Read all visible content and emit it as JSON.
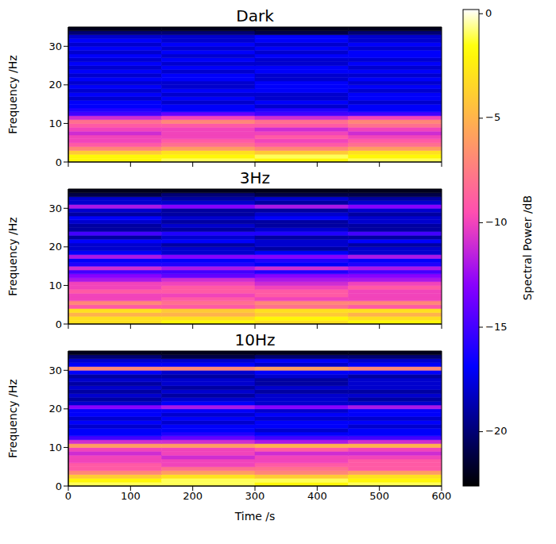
{
  "chart_data": [
    {
      "type": "heatmap",
      "title": "Dark",
      "ylabel": "Frequency /Hz",
      "xlim": [
        0,
        600
      ],
      "xticks": [
        0,
        100,
        200,
        300,
        400,
        500,
        600
      ],
      "ylim": [
        0,
        35
      ],
      "yticks": [
        0,
        10,
        20,
        30
      ],
      "tick_labels": "y",
      "time_bins": [
        0,
        150,
        300,
        450,
        600
      ],
      "freq_bins": [
        0,
        1,
        2,
        3,
        4,
        5,
        6,
        7,
        8,
        9,
        10,
        11,
        12,
        13,
        14,
        15,
        16,
        17,
        18,
        19,
        20,
        21,
        22,
        23,
        24,
        25,
        26,
        27,
        28,
        29,
        30,
        31,
        32,
        33,
        34,
        35
      ],
      "power": [
        [
          -2,
          -1,
          -2,
          -1
        ],
        [
          -2,
          -2,
          -1,
          -2
        ],
        [
          -4,
          -3,
          -4,
          -3
        ],
        [
          -7,
          -6,
          -7,
          -6
        ],
        [
          -9,
          -8,
          -9,
          -8
        ],
        [
          -10,
          -9,
          -10,
          -9
        ],
        [
          -10,
          -10,
          -9,
          -10
        ],
        [
          -11,
          -10,
          -10,
          -11
        ],
        [
          -10,
          -10,
          -11,
          -10
        ],
        [
          -9,
          -9,
          -9,
          -8
        ],
        [
          -8,
          -7,
          -8,
          -7
        ],
        [
          -11,
          -10,
          -11,
          -10
        ],
        [
          -15,
          -14,
          -15,
          -15
        ],
        [
          -16,
          -17,
          -16,
          -17
        ],
        [
          -17,
          -17,
          -18,
          -17
        ],
        [
          -17,
          -18,
          -17,
          -18
        ],
        [
          -18,
          -17,
          -18,
          -17
        ],
        [
          -17,
          -18,
          -18,
          -17
        ],
        [
          -18,
          -17,
          -17,
          -18
        ],
        [
          -17,
          -18,
          -17,
          -17
        ],
        [
          -18,
          -18,
          -17,
          -18
        ],
        [
          -17,
          -17,
          -18,
          -17
        ],
        [
          -18,
          -17,
          -18,
          -18
        ],
        [
          -17,
          -18,
          -17,
          -17
        ],
        [
          -18,
          -17,
          -17,
          -18
        ],
        [
          -17,
          -18,
          -18,
          -17
        ],
        [
          -18,
          -17,
          -18,
          -18
        ],
        [
          -17,
          -18,
          -17,
          -17
        ],
        [
          -18,
          -17,
          -18,
          -17
        ],
        [
          -17,
          -18,
          -17,
          -18
        ],
        [
          -18,
          -17,
          -18,
          -17
        ],
        [
          -17,
          -18,
          -17,
          -18
        ],
        [
          -18,
          -18,
          -17,
          -18
        ],
        [
          -20,
          -20,
          -21,
          -20
        ],
        [
          -22,
          -22,
          -22,
          -22
        ]
      ]
    },
    {
      "type": "heatmap",
      "title": "3Hz",
      "ylabel": "Frequency /Hz",
      "xlim": [
        0,
        600
      ],
      "xticks": [
        0,
        100,
        200,
        300,
        400,
        500,
        600
      ],
      "ylim": [
        0,
        35
      ],
      "yticks": [
        0,
        10,
        20,
        30
      ],
      "tick_labels": "y",
      "time_bins": [
        0,
        150,
        300,
        450,
        600
      ],
      "freq_bins": [
        0,
        1,
        2,
        3,
        4,
        5,
        6,
        7,
        8,
        9,
        10,
        11,
        12,
        13,
        14,
        15,
        16,
        17,
        18,
        19,
        20,
        21,
        22,
        23,
        24,
        25,
        26,
        27,
        28,
        29,
        30,
        31,
        32,
        33,
        34,
        35
      ],
      "power": [
        [
          -3,
          -2,
          -3,
          -2
        ],
        [
          -3,
          -3,
          -2,
          -3
        ],
        [
          -5,
          -5,
          -4,
          -5
        ],
        [
          -3,
          -4,
          -3,
          -3
        ],
        [
          -9,
          -9,
          -8,
          -9
        ],
        [
          -7,
          -8,
          -7,
          -7
        ],
        [
          -10,
          -9,
          -10,
          -10
        ],
        [
          -10,
          -10,
          -9,
          -10
        ],
        [
          -9,
          -9,
          -9,
          -10
        ],
        [
          -10,
          -9,
          -10,
          -9
        ],
        [
          -10,
          -10,
          -11,
          -10
        ],
        [
          -12,
          -11,
          -12,
          -12
        ],
        [
          -13,
          -14,
          -13,
          -13
        ],
        [
          -15,
          -15,
          -16,
          -15
        ],
        [
          -11,
          -12,
          -11,
          -12
        ],
        [
          -16,
          -16,
          -17,
          -16
        ],
        [
          -17,
          -17,
          -16,
          -17
        ],
        [
          -12,
          -13,
          -13,
          -12
        ],
        [
          -17,
          -18,
          -17,
          -18
        ],
        [
          -18,
          -18,
          -19,
          -18
        ],
        [
          -18,
          -19,
          -18,
          -19
        ],
        [
          -17,
          -17,
          -18,
          -17
        ],
        [
          -19,
          -18,
          -19,
          -19
        ],
        [
          -15,
          -16,
          -16,
          -15
        ],
        [
          -19,
          -19,
          -18,
          -19
        ],
        [
          -19,
          -18,
          -19,
          -19
        ],
        [
          -18,
          -19,
          -19,
          -18
        ],
        [
          -17,
          -18,
          -17,
          -18
        ],
        [
          -19,
          -19,
          -18,
          -19
        ],
        [
          -18,
          -19,
          -19,
          -18
        ],
        [
          -12,
          -13,
          -12,
          -13
        ],
        [
          -18,
          -18,
          -19,
          -18
        ],
        [
          -18,
          -19,
          -18,
          -19
        ],
        [
          -21,
          -20,
          -21,
          -21
        ],
        [
          -22,
          -22,
          -22,
          -22
        ]
      ]
    },
    {
      "type": "heatmap",
      "title": "10Hz",
      "xlabel": "Time /s",
      "ylabel": "Frequency /Hz",
      "xlim": [
        0,
        600
      ],
      "xticks": [
        0,
        100,
        200,
        300,
        400,
        500,
        600
      ],
      "ylim": [
        0,
        35
      ],
      "yticks": [
        0,
        10,
        20,
        30
      ],
      "time_bins": [
        0,
        150,
        300,
        450,
        600
      ],
      "freq_bins": [
        0,
        1,
        2,
        3,
        4,
        5,
        6,
        7,
        8,
        9,
        10,
        11,
        12,
        13,
        14,
        15,
        16,
        17,
        18,
        19,
        20,
        21,
        22,
        23,
        24,
        25,
        26,
        27,
        28,
        29,
        30,
        31,
        32,
        33,
        34,
        35
      ],
      "power": [
        [
          -1,
          -1,
          -2,
          -1
        ],
        [
          -2,
          -1,
          -1,
          -2
        ],
        [
          -4,
          -3,
          -4,
          -3
        ],
        [
          -7,
          -6,
          -7,
          -6
        ],
        [
          -9,
          -8,
          -8,
          -9
        ],
        [
          -9,
          -10,
          -9,
          -9
        ],
        [
          -10,
          -10,
          -10,
          -9
        ],
        [
          -10,
          -11,
          -10,
          -10
        ],
        [
          -11,
          -10,
          -11,
          -11
        ],
        [
          -10,
          -10,
          -9,
          -10
        ],
        [
          -6,
          -6,
          -5,
          -5
        ],
        [
          -11,
          -11,
          -12,
          -11
        ],
        [
          -15,
          -14,
          -15,
          -15
        ],
        [
          -17,
          -16,
          -17,
          -17
        ],
        [
          -17,
          -17,
          -18,
          -17
        ],
        [
          -18,
          -17,
          -17,
          -18
        ],
        [
          -17,
          -18,
          -17,
          -17
        ],
        [
          -18,
          -17,
          -18,
          -18
        ],
        [
          -17,
          -18,
          -17,
          -17
        ],
        [
          -17,
          -17,
          -18,
          -17
        ],
        [
          -13,
          -12,
          -13,
          -12
        ],
        [
          -18,
          -17,
          -18,
          -18
        ],
        [
          -19,
          -18,
          -18,
          -19
        ],
        [
          -18,
          -19,
          -18,
          -18
        ],
        [
          -19,
          -18,
          -19,
          -19
        ],
        [
          -18,
          -19,
          -18,
          -18
        ],
        [
          -19,
          -18,
          -19,
          -18
        ],
        [
          -18,
          -18,
          -19,
          -18
        ],
        [
          -19,
          -19,
          -18,
          -19
        ],
        [
          -17,
          -18,
          -17,
          -17
        ],
        [
          -7,
          -7,
          -6,
          -7
        ],
        [
          -17,
          -17,
          -18,
          -17
        ],
        [
          -18,
          -18,
          -17,
          -18
        ],
        [
          -20,
          -21,
          -20,
          -20
        ],
        [
          -22,
          -22,
          -22,
          -22
        ]
      ]
    }
  ],
  "colorbar": {
    "label": "Spectral Power /dB",
    "range": [
      -22.6,
      0.2
    ],
    "ticks": [
      0,
      {
        "value": -5,
        "label": "−5"
      },
      {
        "value": -10,
        "label": "−10"
      },
      {
        "value": -15,
        "label": "−15"
      },
      {
        "value": -20,
        "label": "−20"
      }
    ]
  }
}
